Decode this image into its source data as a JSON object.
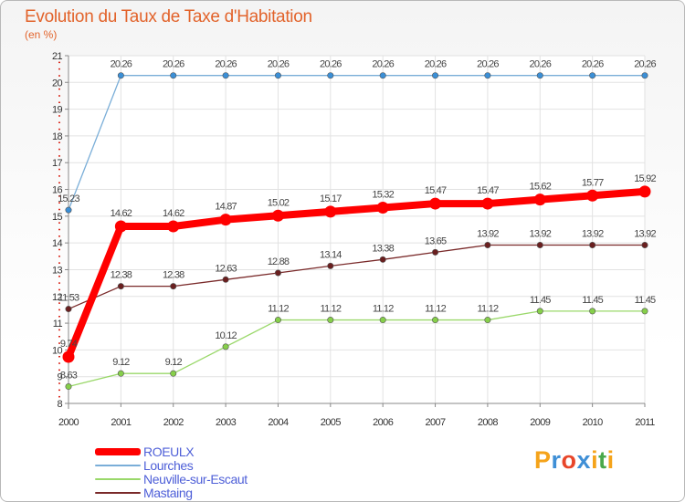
{
  "title": "Evolution du Taux de Taxe d'Habitation",
  "unit": "(en %)",
  "logo": {
    "text": "Proxiti",
    "letters": [
      "P",
      "r",
      "o",
      "x",
      "i",
      "t",
      "i"
    ],
    "colors": [
      "#f5a31a",
      "#3f8fd6",
      "#e8462a",
      "#3f8fd6",
      "#f5a31a",
      "#49a84a",
      "#f5a31a"
    ]
  },
  "chart_data": {
    "type": "line",
    "x": [
      "2000",
      "2001",
      "2002",
      "2003",
      "2004",
      "2005",
      "2006",
      "2007",
      "2008",
      "2009",
      "2010",
      "2011"
    ],
    "ylim": [
      8,
      21
    ],
    "yticks": [
      "8",
      "9",
      "10",
      "11",
      "12",
      "13",
      "14",
      "15",
      "16",
      "17",
      "18",
      "19",
      "20",
      "21"
    ],
    "grid": true,
    "legend": "bottom-left",
    "series": [
      {
        "name": "Mastaing",
        "color": "#7a2a2a",
        "values": [
          11.53,
          12.38,
          12.38,
          12.63,
          12.88,
          13.14,
          13.38,
          13.65,
          13.92,
          13.92,
          13.92,
          13.92
        ],
        "labels": [
          "11.53",
          "12.38",
          "12.38",
          "12.63",
          "12.88",
          "13.14",
          "13.38",
          "13.65",
          "13.92",
          "13.92",
          "13.92",
          "13.92"
        ]
      },
      {
        "name": "Neuville-sur-Escaut",
        "color": "#9ad86a",
        "values": [
          8.63,
          9.12,
          9.12,
          10.12,
          11.12,
          11.12,
          11.12,
          11.12,
          11.12,
          11.45,
          11.45,
          11.45
        ],
        "labels": [
          "8.63",
          "9.12",
          "9.12",
          "10.12",
          "11.12",
          "11.12",
          "11.12",
          "11.12",
          "11.12",
          "11.45",
          "11.45",
          "11.45"
        ]
      },
      {
        "name": "Lourches",
        "color": "#7aaed8",
        "values": [
          15.23,
          20.26,
          20.26,
          20.26,
          20.26,
          20.26,
          20.26,
          20.26,
          20.26,
          20.26,
          20.26,
          20.26
        ],
        "labels": [
          "15.23",
          "20.26",
          "20.26",
          "20.26",
          "20.26",
          "20.26",
          "20.26",
          "20.26",
          "20.26",
          "20.26",
          "20.26",
          "20.26"
        ]
      },
      {
        "name": "ROEULX",
        "color": "#ff0000",
        "values": [
          9.74,
          14.62,
          14.62,
          14.87,
          15.02,
          15.17,
          15.32,
          15.47,
          15.47,
          15.62,
          15.77,
          15.92
        ],
        "labels": [
          "9.74",
          "14.62",
          "14.62",
          "14.87",
          "15.02",
          "15.17",
          "15.32",
          "15.47",
          "15.47",
          "15.62",
          "15.77",
          "15.92"
        ]
      }
    ]
  }
}
